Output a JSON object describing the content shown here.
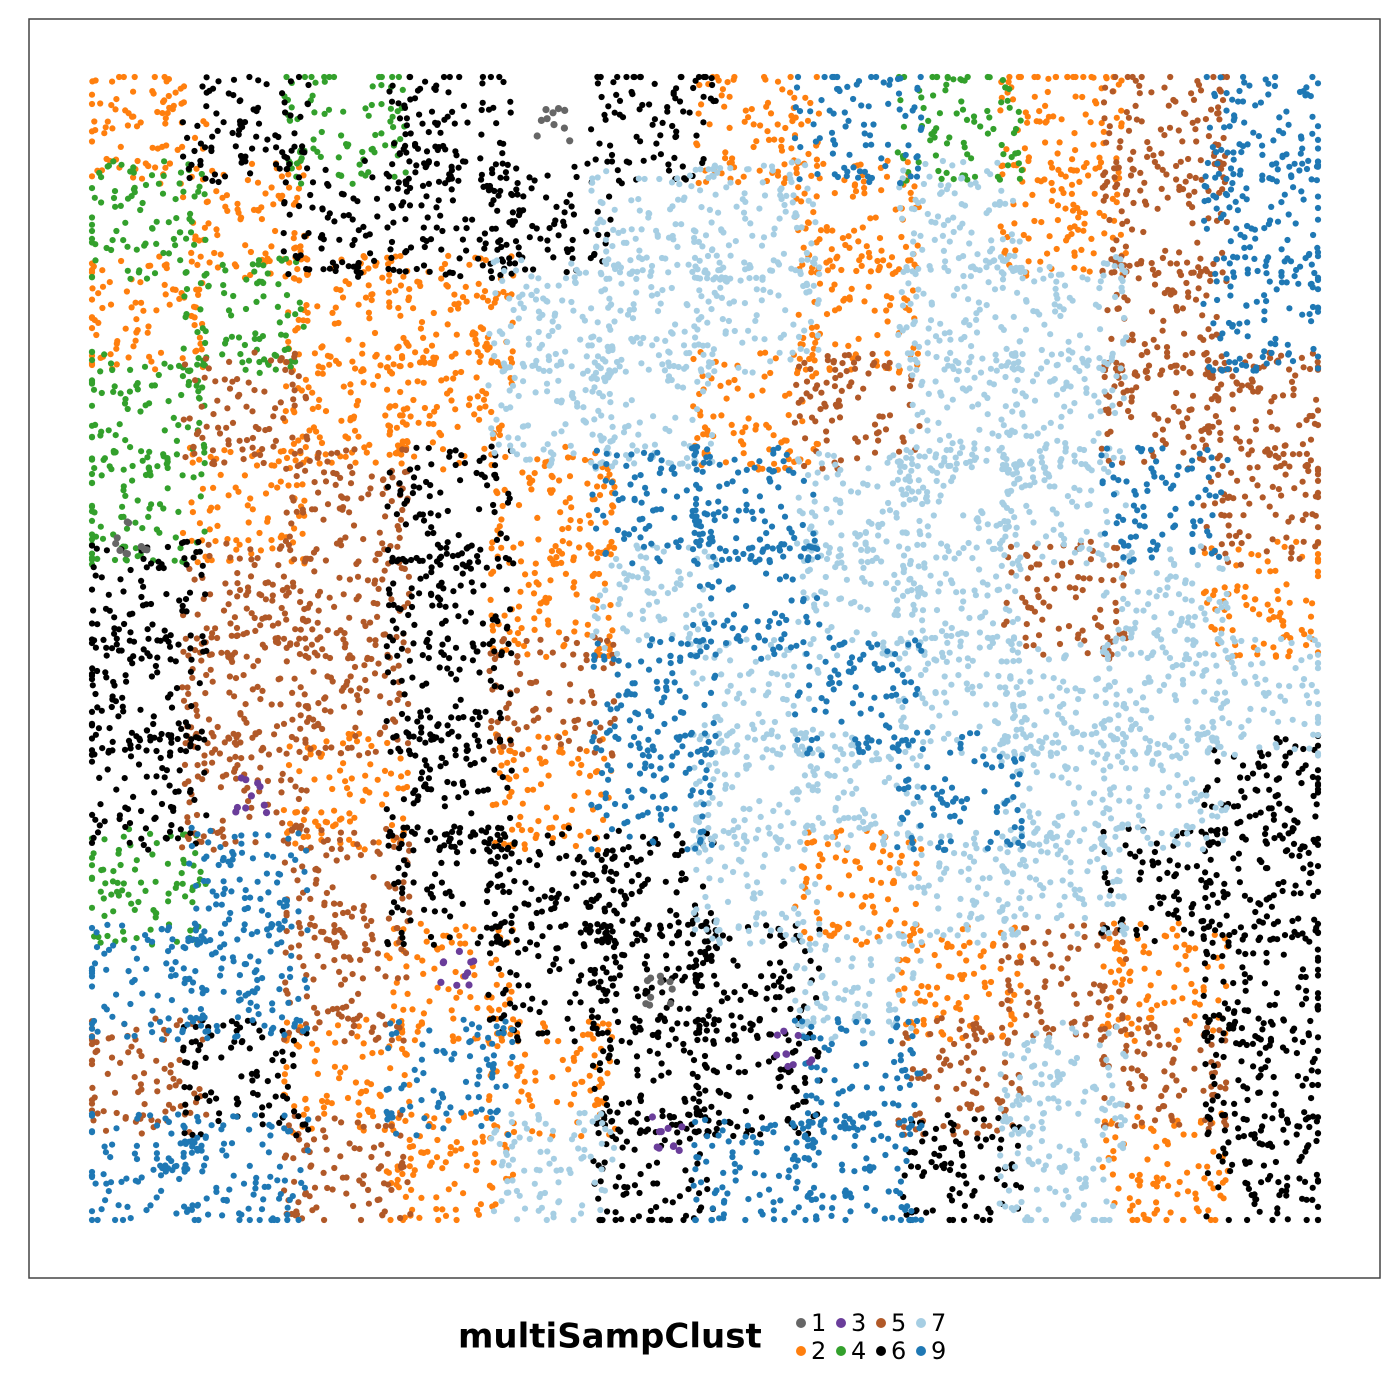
{
  "chart_data": {
    "type": "scatter",
    "legend_title": "multiSampClust",
    "legend_position": "bottom",
    "xlim": [
      0,
      100
    ],
    "ylim": [
      0,
      100
    ],
    "series": [
      {
        "name": "1",
        "color": "#666666",
        "x": [
          37.5,
          46.3,
          3.3
        ],
        "y": [
          95.8,
          20.2,
          59.5
        ]
      },
      {
        "name": "2",
        "color": "#ff7f0e",
        "x": [
          4.2,
          54.2,
          79.2,
          12.5,
          62.5,
          79.2,
          4.2,
          20.8,
          29.2,
          62.5,
          20.8,
          29.2,
          54.2,
          12.5,
          37.5,
          37.5,
          95.8,
          20.8,
          37.5,
          62.5,
          29.2,
          70.8,
          87.5,
          20.8,
          37.5,
          29.2,
          87.5
        ],
        "y": [
          95.8,
          95.8,
          95.8,
          87.5,
          87.5,
          87.5,
          79.2,
          79.2,
          79.2,
          79.2,
          70.8,
          70.8,
          70.8,
          62.5,
          62.5,
          54.2,
          54.2,
          37.5,
          37.5,
          29.2,
          20.8,
          20.8,
          20.8,
          12.5,
          12.5,
          4.2,
          4.2
        ]
      },
      {
        "name": "3",
        "color": "#6a3d9a",
        "x": [
          13.0,
          29.7,
          46.7,
          57.3
        ],
        "y": [
          37.2,
          22.0,
          7.6,
          15.0
        ]
      },
      {
        "name": "4",
        "color": "#33a02c",
        "x": [
          20.8,
          70.8,
          4.2,
          12.5,
          4.2,
          4.2,
          4.2
        ],
        "y": [
          95.8,
          95.8,
          87.5,
          79.2,
          70.8,
          62.5,
          29.2
        ]
      },
      {
        "name": "5",
        "color": "#b15928",
        "x": [
          87.5,
          87.5,
          87.5,
          12.5,
          62.5,
          87.5,
          95.8,
          20.8,
          95.8,
          12.5,
          20.8,
          79.2,
          12.5,
          20.8,
          37.5,
          12.5,
          20.8,
          20.8,
          79.2,
          4.2,
          70.8,
          87.5,
          20.8
        ],
        "y": [
          95.8,
          87.5,
          79.2,
          70.8,
          70.8,
          70.8,
          70.8,
          62.5,
          62.5,
          54.2,
          54.2,
          54.2,
          45.8,
          45.8,
          45.8,
          37.5,
          29.2,
          20.8,
          20.8,
          12.5,
          12.5,
          12.5,
          4.2
        ]
      },
      {
        "name": "6",
        "color": "#000000",
        "x": [
          12.5,
          29.2,
          45.8,
          20.8,
          29.2,
          37.5,
          29.2,
          4.2,
          29.2,
          4.2,
          29.2,
          4.2,
          29.2,
          95.8,
          29.2,
          37.5,
          45.8,
          87.5,
          95.8,
          37.5,
          45.8,
          54.2,
          95.8,
          12.5,
          45.8,
          54.2,
          95.8,
          45.8,
          70.8,
          95.8
        ],
        "y": [
          95.8,
          95.8,
          95.8,
          87.5,
          87.5,
          87.5,
          62.5,
          54.2,
          54.2,
          45.8,
          45.8,
          37.5,
          37.5,
          37.5,
          29.2,
          29.2,
          29.2,
          29.2,
          29.2,
          20.8,
          20.8,
          20.8,
          20.8,
          12.5,
          12.5,
          12.5,
          12.5,
          4.2,
          4.2,
          4.2
        ]
      },
      {
        "name": "7",
        "color": "#a6cee3",
        "x": [
          45.8,
          54.2,
          70.8,
          37.5,
          45.8,
          54.2,
          70.8,
          79.2,
          37.5,
          45.8,
          70.8,
          79.2,
          62.5,
          70.8,
          79.2,
          45.8,
          62.5,
          70.8,
          87.5,
          54.2,
          70.8,
          79.2,
          87.5,
          95.8,
          54.2,
          62.5,
          79.2,
          87.5,
          54.2,
          70.8,
          79.2,
          62.5,
          79.2,
          37.5,
          79.2
        ],
        "y": [
          87.5,
          87.5,
          87.5,
          79.2,
          79.2,
          79.2,
          79.2,
          79.2,
          70.8,
          70.8,
          70.8,
          70.8,
          62.5,
          62.5,
          62.5,
          54.2,
          54.2,
          54.2,
          54.2,
          45.8,
          45.8,
          45.8,
          45.8,
          45.8,
          37.5,
          37.5,
          37.5,
          37.5,
          29.2,
          29.2,
          29.2,
          20.8,
          12.5,
          4.2,
          4.2
        ]
      },
      {
        "name": "9",
        "color": "#1f78b4",
        "x": [
          62.5,
          95.8,
          95.8,
          95.8,
          45.8,
          54.2,
          87.5,
          54.2,
          45.8,
          62.5,
          45.8,
          70.8,
          12.5,
          4.2,
          12.5,
          29.2,
          62.5,
          4.2,
          12.5,
          54.2,
          62.5
        ],
        "y": [
          95.8,
          95.8,
          87.5,
          79.2,
          62.5,
          62.5,
          62.5,
          54.2,
          45.8,
          45.8,
          37.5,
          37.5,
          29.2,
          20.8,
          20.8,
          12.5,
          12.5,
          4.2,
          4.2,
          4.2,
          4.2
        ]
      }
    ]
  }
}
